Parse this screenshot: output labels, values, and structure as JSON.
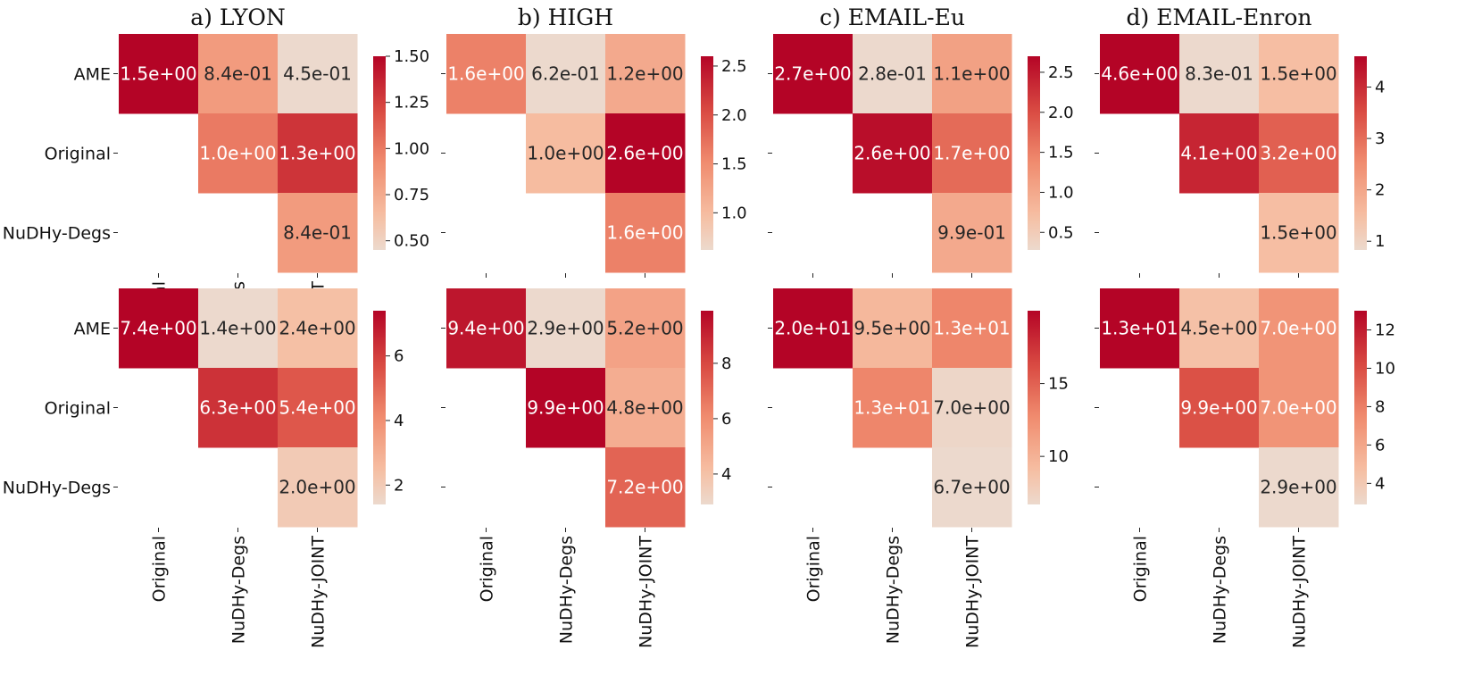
{
  "chart_data": [
    {
      "type": "heatmap",
      "title": "a) LYON",
      "rows": [
        "AME",
        "Original",
        "NuDHy-Degs"
      ],
      "cols": [
        "Original",
        "NuDHy-Degs",
        "NuDHy-JOINT"
      ],
      "values": [
        [
          1.5,
          0.84,
          0.45
        ],
        [
          null,
          1.0,
          1.3
        ],
        [
          null,
          null,
          0.84
        ]
      ],
      "labels": [
        [
          "1.5e+00",
          "8.4e-01",
          "4.5e-01"
        ],
        [
          "",
          "1.0e+00",
          "1.3e+00"
        ],
        [
          "",
          "",
          "8.4e-01"
        ]
      ],
      "colorbar_range": [
        0.45,
        1.5
      ],
      "colorbar_ticks": [
        "0.50",
        "0.75",
        "1.00",
        "1.25",
        "1.50"
      ]
    },
    {
      "type": "heatmap",
      "title": "b) HIGH",
      "rows": [
        "",
        "",
        ""
      ],
      "cols": [],
      "values": [
        [
          1.6,
          0.62,
          1.2
        ],
        [
          null,
          1.0,
          2.6
        ],
        [
          null,
          null,
          1.6
        ]
      ],
      "labels": [
        [
          "1.6e+00",
          "6.2e-01",
          "1.2e+00"
        ],
        [
          "",
          "1.0e+00",
          "2.6e+00"
        ],
        [
          "",
          "",
          "1.6e+00"
        ]
      ],
      "colorbar_range": [
        0.62,
        2.6
      ],
      "colorbar_ticks": [
        "1.0",
        "1.5",
        "2.0",
        "2.5"
      ]
    },
    {
      "type": "heatmap",
      "title": "c) EMAIL-Eu",
      "rows": [
        "",
        "",
        ""
      ],
      "cols": [],
      "values": [
        [
          2.7,
          0.28,
          1.1
        ],
        [
          null,
          2.6,
          1.7
        ],
        [
          null,
          null,
          0.99
        ]
      ],
      "labels": [
        [
          "2.7e+00",
          "2.8e-01",
          "1.1e+00"
        ],
        [
          "",
          "2.6e+00",
          "1.7e+00"
        ],
        [
          "",
          "",
          "9.9e-01"
        ]
      ],
      "colorbar_range": [
        0.28,
        2.7
      ],
      "colorbar_ticks": [
        "0.5",
        "1.0",
        "1.5",
        "2.0",
        "2.5"
      ]
    },
    {
      "type": "heatmap",
      "title": "d) EMAIL-Enron",
      "rows": [
        "",
        "",
        ""
      ],
      "cols": [],
      "values": [
        [
          4.6,
          0.83,
          1.5
        ],
        [
          null,
          4.1,
          3.2
        ],
        [
          null,
          null,
          1.5
        ]
      ],
      "labels": [
        [
          "4.6e+00",
          "8.3e-01",
          "1.5e+00"
        ],
        [
          "",
          "4.1e+00",
          "3.2e+00"
        ],
        [
          "",
          "",
          "1.5e+00"
        ]
      ],
      "colorbar_range": [
        0.83,
        4.6
      ],
      "colorbar_ticks": [
        "1",
        "2",
        "3",
        "4"
      ]
    },
    {
      "type": "heatmap",
      "title": "",
      "rows": [
        "AME",
        "Original",
        "NuDHy-Degs"
      ],
      "cols": [
        "Original",
        "NuDHy-Degs",
        "NuDHy-JOINT"
      ],
      "values": [
        [
          7.4,
          1.4,
          2.4
        ],
        [
          null,
          6.3,
          5.4
        ],
        [
          null,
          null,
          2.0
        ]
      ],
      "labels": [
        [
          "7.4e+00",
          "1.4e+00",
          "2.4e+00"
        ],
        [
          "",
          "6.3e+00",
          "5.4e+00"
        ],
        [
          "",
          "",
          "2.0e+00"
        ]
      ],
      "colorbar_range": [
        1.4,
        7.4
      ],
      "colorbar_ticks": [
        "2",
        "4",
        "6"
      ]
    },
    {
      "type": "heatmap",
      "title": "",
      "rows": [
        "",
        "",
        ""
      ],
      "cols": [
        "Original",
        "NuDHy-Degs",
        "NuDHy-JOINT"
      ],
      "values": [
        [
          9.4,
          2.9,
          5.2
        ],
        [
          null,
          9.9,
          4.8
        ],
        [
          null,
          null,
          7.2
        ]
      ],
      "labels": [
        [
          "9.4e+00",
          "2.9e+00",
          "5.2e+00"
        ],
        [
          "",
          "9.9e+00",
          "4.8e+00"
        ],
        [
          "",
          "",
          "7.2e+00"
        ]
      ],
      "colorbar_range": [
        2.9,
        9.9
      ],
      "colorbar_ticks": [
        "4",
        "6",
        "8"
      ]
    },
    {
      "type": "heatmap",
      "title": "",
      "rows": [
        "",
        "",
        ""
      ],
      "cols": [
        "Original",
        "NuDHy-Degs",
        "NuDHy-JOINT"
      ],
      "values": [
        [
          20.0,
          9.5,
          13.0
        ],
        [
          null,
          13.0,
          7.0
        ],
        [
          null,
          null,
          6.7
        ]
      ],
      "labels": [
        [
          "2.0e+01",
          "9.5e+00",
          "1.3e+01"
        ],
        [
          "",
          "1.3e+01",
          "7.0e+00"
        ],
        [
          "",
          "",
          "6.7e+00"
        ]
      ],
      "colorbar_range": [
        6.7,
        20.0
      ],
      "colorbar_ticks": [
        "10",
        "15"
      ]
    },
    {
      "type": "heatmap",
      "title": "",
      "rows": [
        "",
        "",
        ""
      ],
      "cols": [
        "Original",
        "NuDHy-Degs",
        "NuDHy-JOINT"
      ],
      "values": [
        [
          13.0,
          4.5,
          7.0
        ],
        [
          null,
          9.9,
          7.0
        ],
        [
          null,
          null,
          2.9
        ]
      ],
      "labels": [
        [
          "1.3e+01",
          "4.5e+00",
          "7.0e+00"
        ],
        [
          "",
          "9.9e+00",
          "7.0e+00"
        ],
        [
          "",
          "",
          "2.9e+00"
        ]
      ],
      "colorbar_range": [
        2.9,
        13.0
      ],
      "colorbar_ticks": [
        "4",
        "6",
        "8",
        "10",
        "12"
      ]
    }
  ]
}
